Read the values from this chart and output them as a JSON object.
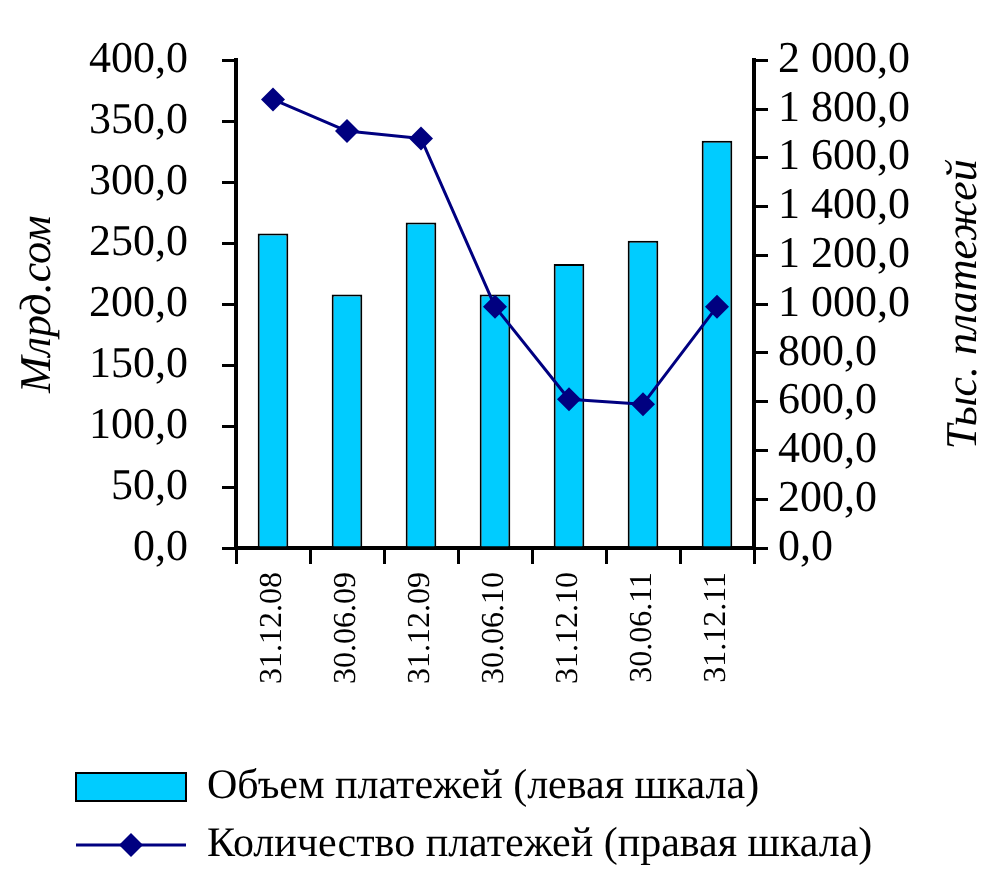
{
  "chart_data": {
    "type": "bar",
    "categories": [
      "31.12.08",
      "30.06.09",
      "31.12.09",
      "30.06.10",
      "31.12.10",
      "30.06.11",
      "31.12.11"
    ],
    "series": [
      {
        "name": "Объем платежей (левая шкала)",
        "color": "#00ccff",
        "values": [
          258,
          208,
          267,
          208,
          233,
          252,
          334
        ]
      },
      {
        "name": "Количество платежей (правая шкала)",
        "type": "line",
        "axis": "y2",
        "color": "#000080",
        "values": [
          1840,
          1710,
          1680,
          990,
          610,
          590,
          990
        ]
      }
    ],
    "ylabel": "Млрд.сом",
    "y2label": "Тыс. платежей",
    "ylim": [
      0,
      400
    ],
    "yticks": [
      {
        "value": 0,
        "label": "0,0"
      },
      {
        "value": 50,
        "label": "50,0"
      },
      {
        "value": 100,
        "label": "100,0"
      },
      {
        "value": 150,
        "label": "150,0"
      },
      {
        "value": 200,
        "label": "200,0"
      },
      {
        "value": 250,
        "label": "250,0"
      },
      {
        "value": 300,
        "label": "300,0"
      },
      {
        "value": 350,
        "label": "350,0"
      },
      {
        "value": 400,
        "label": "400,0"
      }
    ],
    "y2lim": [
      0,
      2000
    ],
    "y2ticks": [
      {
        "value": 0,
        "label": "0,0"
      },
      {
        "value": 200,
        "label": "200,0"
      },
      {
        "value": 400,
        "label": "400,0"
      },
      {
        "value": 600,
        "label": "600,0"
      },
      {
        "value": 800,
        "label": "800,0"
      },
      {
        "value": 1000,
        "label": "1 000,0"
      },
      {
        "value": 1200,
        "label": "1 200,0"
      },
      {
        "value": 1400,
        "label": "1 400,0"
      },
      {
        "value": 1600,
        "label": "1 600,0"
      },
      {
        "value": 1800,
        "label": "1 800,0"
      },
      {
        "value": 2000,
        "label": "2 000,0"
      }
    ],
    "grid": false,
    "legend": "bottom",
    "marker": "diamond",
    "line_style": "solid"
  }
}
